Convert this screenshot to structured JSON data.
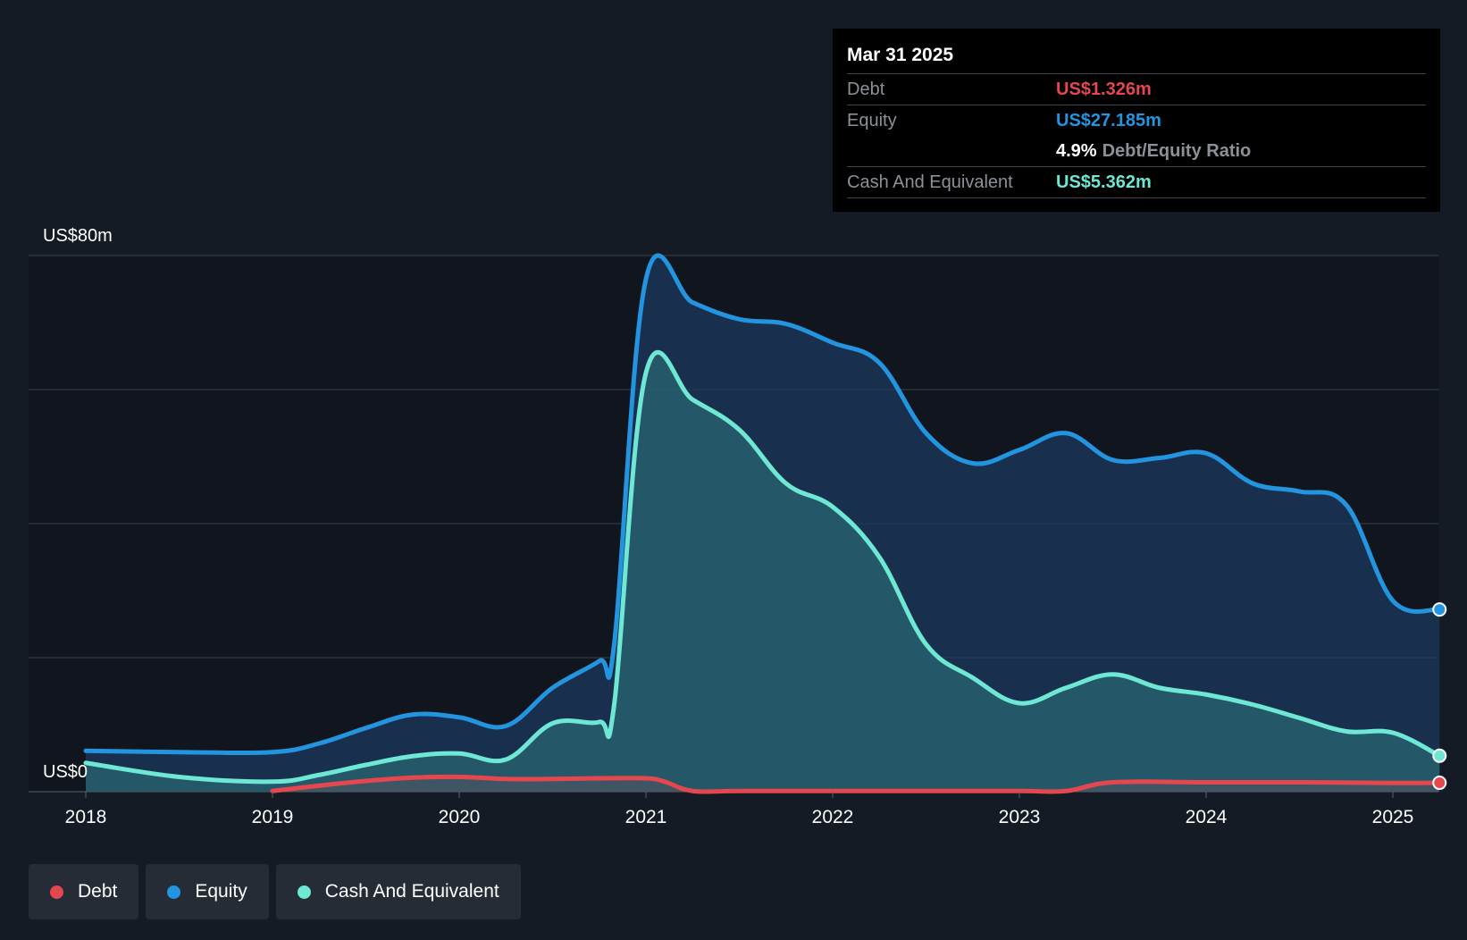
{
  "tooltip": {
    "date": "Mar 31 2025",
    "debt_label": "Debt",
    "debt_value": "US$1.326m",
    "equity_label": "Equity",
    "equity_value": "US$27.185m",
    "ratio_value": "4.9%",
    "ratio_label": "Debt/Equity Ratio",
    "cash_label": "Cash And Equivalent",
    "cash_value": "US$5.362m"
  },
  "legend": {
    "debt": "Debt",
    "equity": "Equity",
    "cash": "Cash And Equivalent"
  },
  "colors": {
    "background": "#151b24",
    "debt": "#e5474e",
    "equity": "#2394df",
    "cash": "#6ee7d5",
    "grid": "#3a414b"
  },
  "chart_data": {
    "type": "area",
    "ylim": [
      0,
      80
    ],
    "xlim": [
      2018,
      2025.25
    ],
    "y_tick_labels": [
      {
        "value": 80,
        "label": "US$80m"
      },
      {
        "value": 0,
        "label": "US$0"
      }
    ],
    "gridlines": [
      0,
      20,
      40,
      60,
      80
    ],
    "x_ticks": [
      2018,
      2019,
      2020,
      2021,
      2022,
      2023,
      2024,
      2025
    ],
    "x_tick_labels": [
      "2018",
      "2019",
      "2020",
      "2021",
      "2022",
      "2023",
      "2024",
      "2025"
    ],
    "series": [
      {
        "name": "Equity",
        "key": "equity",
        "x": [
          2018,
          2018.5,
          2019,
          2019.25,
          2019.5,
          2019.75,
          2020,
          2020.25,
          2020.5,
          2020.75,
          2020.83,
          2021,
          2021.25,
          2021.5,
          2021.75,
          2022,
          2022.25,
          2022.5,
          2022.75,
          2023,
          2023.25,
          2023.5,
          2023.75,
          2024,
          2024.25,
          2024.5,
          2024.75,
          2025,
          2025.25
        ],
        "values": [
          6.1,
          5.9,
          5.9,
          7.2,
          9.5,
          11.5,
          11.1,
          9.8,
          15.5,
          19.5,
          22,
          76.5,
          73,
          70.5,
          69.8,
          67,
          64,
          53.5,
          49,
          51,
          53.5,
          49.5,
          49.8,
          50.5,
          46,
          44.8,
          42.8,
          28.5,
          27.185
        ]
      },
      {
        "name": "Cash And Equivalent",
        "key": "cash",
        "x": [
          2018,
          2018.5,
          2019,
          2019.25,
          2019.5,
          2019.75,
          2020,
          2020.25,
          2020.5,
          2020.75,
          2020.83,
          2021,
          2021.25,
          2021.5,
          2021.75,
          2022,
          2022.25,
          2022.5,
          2022.75,
          2023,
          2023.25,
          2023.5,
          2023.75,
          2024,
          2024.25,
          2024.5,
          2024.75,
          2025,
          2025.25
        ],
        "values": [
          4.3,
          2.2,
          1.5,
          2.5,
          4,
          5.3,
          5.7,
          4.8,
          10.2,
          10.4,
          13,
          62.5,
          58.5,
          54,
          46,
          42.5,
          35,
          22,
          17,
          13.2,
          15.5,
          17.5,
          15.5,
          14.5,
          13,
          11,
          9,
          8.8,
          5.362
        ]
      },
      {
        "name": "Debt",
        "key": "debt",
        "x": [
          2019,
          2019.25,
          2019.5,
          2019.75,
          2020,
          2020.25,
          2020.5,
          2020.75,
          2021,
          2021.1,
          2021.25,
          2021.5,
          2022,
          2022.5,
          2023,
          2023.25,
          2023.5,
          2024,
          2024.5,
          2025,
          2025.25
        ],
        "values": [
          0.1,
          0.9,
          1.6,
          2.1,
          2.2,
          1.9,
          1.9,
          2,
          2,
          1.5,
          0.1,
          0.1,
          0.1,
          0.1,
          0.1,
          0.1,
          1.4,
          1.4,
          1.4,
          1.3,
          1.326
        ]
      }
    ]
  }
}
